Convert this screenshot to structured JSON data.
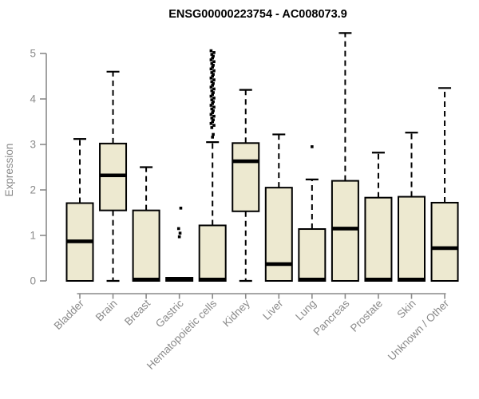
{
  "title": "ENSG00000223754 - AC008073.9",
  "colors": {
    "background": "#ffffff",
    "box_fill": "#EDE9D0",
    "box_border": "#000000",
    "median": "#000000",
    "whisker": "#000000",
    "outlier": "#000000",
    "axis": "#8a8a8a",
    "axis_text": "#8a8a8a",
    "title_text": "#000000"
  },
  "chart_data": {
    "type": "boxplot",
    "title": "ENSG00000223754 - AC008073.9",
    "xlabel": "",
    "ylabel": "Expression",
    "ylim": [
      0,
      5.5
    ],
    "yticks": [
      0,
      1,
      2,
      3,
      4,
      5
    ],
    "grid": false,
    "legend": null,
    "categories": [
      "Bladder",
      "Brain",
      "Breast",
      "Gastric",
      "Hematopoietic cells",
      "Kidney",
      "Liver",
      "Lung",
      "Pancreas",
      "Prostate",
      "Skin",
      "Unknown / Other"
    ],
    "boxes": [
      {
        "whisker_low": 0,
        "q1": 0,
        "median": 0.87,
        "q3": 1.71,
        "whisker_high": 3.12,
        "outliers": []
      },
      {
        "whisker_low": 0,
        "q1": 1.55,
        "median": 2.32,
        "q3": 3.02,
        "whisker_high": 4.6,
        "outliers": []
      },
      {
        "whisker_low": 0,
        "q1": 0,
        "median": 0.03,
        "q3": 1.55,
        "whisker_high": 2.5,
        "outliers": []
      },
      {
        "whisker_low": 0,
        "q1": 0,
        "median": 0.03,
        "q3": 0.07,
        "whisker_high": 0.07,
        "outliers": [
          0.97,
          1.05,
          1.15,
          1.6
        ]
      },
      {
        "whisker_low": 0,
        "q1": 0,
        "median": 0.03,
        "q3": 1.22,
        "whisker_high": 3.05,
        "outliers": [
          3.16,
          3.22,
          3.37,
          3.42,
          3.46,
          3.5,
          3.54,
          3.58,
          3.62,
          3.66,
          3.7,
          3.74,
          3.78,
          3.82,
          3.86,
          3.9,
          3.94,
          3.98,
          4.02,
          4.06,
          4.1,
          4.14,
          4.18,
          4.22,
          4.26,
          4.3,
          4.34,
          4.38,
          4.42,
          4.46,
          4.5,
          4.54,
          4.58,
          4.62,
          4.66,
          4.7,
          4.74,
          4.78,
          4.82,
          4.86,
          4.9,
          4.94,
          4.98,
          5.02,
          5.06
        ]
      },
      {
        "whisker_low": 0,
        "q1": 1.53,
        "median": 2.63,
        "q3": 3.03,
        "whisker_high": 4.2,
        "outliers": []
      },
      {
        "whisker_low": 0,
        "q1": 0,
        "median": 0.37,
        "q3": 2.05,
        "whisker_high": 3.22,
        "outliers": []
      },
      {
        "whisker_low": 0,
        "q1": 0,
        "median": 0.03,
        "q3": 1.14,
        "whisker_high": 2.23,
        "outliers": [
          2.95
        ]
      },
      {
        "whisker_low": 0,
        "q1": 0,
        "median": 1.15,
        "q3": 2.2,
        "whisker_high": 5.45,
        "outliers": []
      },
      {
        "whisker_low": 0,
        "q1": 0,
        "median": 0.03,
        "q3": 1.83,
        "whisker_high": 2.82,
        "outliers": []
      },
      {
        "whisker_low": 0,
        "q1": 0,
        "median": 0.03,
        "q3": 1.85,
        "whisker_high": 3.26,
        "outliers": []
      },
      {
        "whisker_low": 0,
        "q1": 0,
        "median": 0.72,
        "q3": 1.72,
        "whisker_high": 4.24,
        "outliers": []
      }
    ]
  }
}
